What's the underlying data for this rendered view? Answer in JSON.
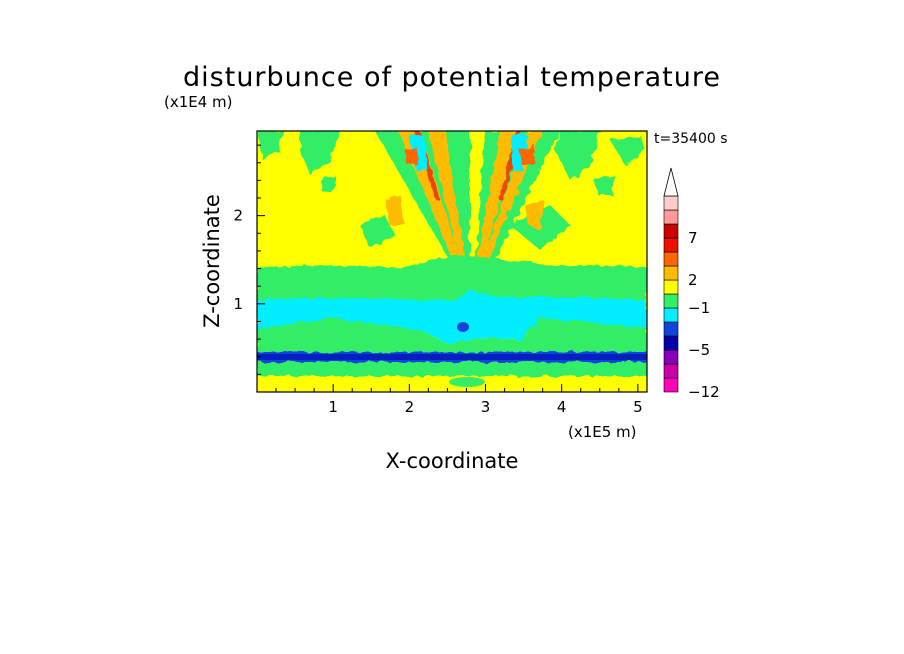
{
  "chart_data": {
    "type": "heatmap",
    "title": "disturbunce of potential temperature",
    "xlabel": "X-coordinate",
    "ylabel": "Z-coordinate",
    "x_scale_label": "(x1E5 m)",
    "y_scale_label": "(x1E4 m)",
    "time_label": "t=35400 s",
    "xlim": [
      0,
      5.12
    ],
    "ylim": [
      0,
      2.96
    ],
    "x_ticks": [
      "1",
      "2",
      "3",
      "4",
      "5"
    ],
    "y_ticks": [
      "1",
      "2"
    ],
    "colorbar": {
      "extend": "max",
      "labels": [
        "7",
        "2",
        "−1",
        "−5",
        "−12"
      ],
      "levels": [
        {
          "color": "#ff00bb",
          "label": ""
        },
        {
          "color": "#cc00aa",
          "label": ""
        },
        {
          "color": "#8800bb",
          "label": ""
        },
        {
          "color": "#0000aa",
          "label": ""
        },
        {
          "color": "#1144dd",
          "label": ""
        },
        {
          "color": "#00eeff",
          "label": ""
        },
        {
          "color": "#33ee66",
          "label": ""
        },
        {
          "color": "#ffff00",
          "label": ""
        },
        {
          "color": "#ffbb00",
          "label": ""
        },
        {
          "color": "#ff6600",
          "label": ""
        },
        {
          "color": "#ee1100",
          "label": ""
        },
        {
          "color": "#cc0000",
          "label": ""
        },
        {
          "color": "#ff9999",
          "label": ""
        },
        {
          "color": "#ffcccc",
          "label": ""
        }
      ]
    },
    "bands": [
      {
        "z": [
          0.0,
          0.1
        ],
        "value": "yellow"
      },
      {
        "z": [
          0.1,
          0.18
        ],
        "value": "green"
      },
      {
        "z": [
          0.26,
          0.38
        ],
        "value": "green"
      },
      {
        "z": [
          0.36,
          0.43
        ],
        "value": "blue"
      },
      {
        "z": [
          0.43,
          0.95
        ],
        "value": "green"
      },
      {
        "z": [
          0.55,
          1.05
        ],
        "value": "cyan"
      },
      {
        "z": [
          1.05,
          1.42
        ],
        "value": "green"
      },
      {
        "z": [
          1.42,
          2.96
        ],
        "value": "yellow"
      }
    ]
  }
}
